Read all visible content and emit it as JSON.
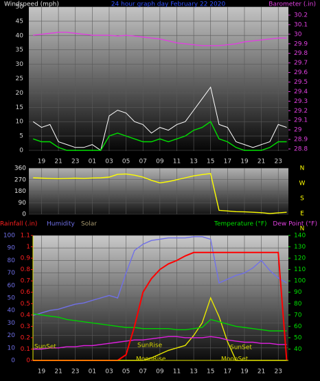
{
  "chart_data": [
    {
      "type": "line",
      "title": "24 hour graph day   February 22 2020",
      "y_label": "Windspeed (mph)",
      "y2_label": "Barometer (.in)",
      "x": [
        0,
        1,
        2,
        3,
        4,
        5,
        6,
        7,
        8,
        9,
        10,
        11,
        12,
        13,
        14,
        15,
        16,
        17,
        18,
        19,
        20,
        21,
        22,
        23,
        24,
        25,
        26,
        27,
        28,
        29,
        30
      ],
      "xlim": [
        -0.5,
        30.2
      ],
      "xticks": [
        {
          "value": 1,
          "label": "19"
        },
        {
          "value": 3,
          "label": "21"
        },
        {
          "value": 5,
          "label": "23"
        },
        {
          "value": 7,
          "label": "01"
        },
        {
          "value": 9,
          "label": "03"
        },
        {
          "value": 11,
          "label": "05"
        },
        {
          "value": 13,
          "label": "07"
        },
        {
          "value": 15,
          "label": "09"
        },
        {
          "value": 17,
          "label": "11"
        },
        {
          "value": 19,
          "label": "13"
        },
        {
          "value": 21,
          "label": "15"
        },
        {
          "value": 23,
          "label": "17"
        },
        {
          "value": 25,
          "label": "19"
        },
        {
          "value": 27,
          "label": "21"
        },
        {
          "value": 29,
          "label": "23"
        }
      ],
      "ylim": [
        0,
        50
      ],
      "yticks": [
        0,
        5,
        10,
        15,
        20,
        25,
        30,
        35,
        40,
        45,
        50
      ],
      "y2lim": [
        28.8,
        30.2
      ],
      "y2ticks": [
        28.8,
        28.9,
        29,
        29.1,
        29.2,
        29.3,
        29.4,
        29.5,
        29.6,
        29.7,
        29.8,
        29.9,
        30,
        30.1,
        30.2
      ],
      "series": [
        {
          "color": "#ffffff",
          "values": [
            10,
            8,
            9,
            3,
            2,
            1,
            1,
            2,
            0,
            12,
            14,
            13,
            10,
            9,
            6,
            8,
            7,
            9,
            10,
            14,
            18,
            22,
            9,
            8,
            3,
            2,
            1,
            2,
            3,
            9,
            8
          ]
        },
        {
          "color": "#00e000",
          "values": [
            4,
            3,
            3,
            1,
            0,
            0,
            0,
            0,
            0,
            5,
            6,
            5,
            4,
            3,
            3,
            4,
            3,
            4,
            5,
            7,
            8,
            10,
            4,
            3,
            1,
            0,
            0,
            0,
            1,
            3,
            3
          ]
        },
        {
          "color": "#e040e0",
          "axis": "y2",
          "values": [
            29.99,
            30.0,
            30.01,
            30.02,
            30.02,
            30.01,
            30.0,
            29.99,
            29.99,
            29.99,
            29.98,
            29.99,
            29.98,
            29.97,
            29.96,
            29.95,
            29.93,
            29.91,
            29.9,
            29.89,
            29.88,
            29.88,
            29.88,
            29.89,
            29.9,
            29.92,
            29.93,
            29.94,
            29.95,
            29.96,
            29.96
          ]
        }
      ]
    },
    {
      "type": "line",
      "x": [
        0,
        1,
        2,
        3,
        4,
        5,
        6,
        7,
        8,
        9,
        10,
        11,
        12,
        13,
        14,
        15,
        16,
        17,
        18,
        19,
        20,
        21,
        22,
        23,
        24,
        25,
        26,
        27,
        28,
        29,
        30
      ],
      "xlim": [
        -0.5,
        30.2
      ],
      "ylim": [
        0,
        360
      ],
      "yticks": [
        0,
        90,
        180,
        270,
        360
      ],
      "compass": [
        "N",
        "E",
        "S",
        "W",
        "N"
      ],
      "series": [
        {
          "color": "#ffff00",
          "values": [
            285,
            282,
            280,
            278,
            280,
            282,
            280,
            283,
            285,
            290,
            312,
            315,
            305,
            290,
            265,
            245,
            255,
            270,
            285,
            300,
            310,
            318,
            30,
            25,
            20,
            18,
            15,
            12,
            5,
            10,
            15
          ]
        }
      ]
    },
    {
      "type": "line",
      "y_label": "Rainfall (.in)",
      "humidity_label": "Humidity",
      "solar_label": "Solar",
      "y2_label": "Temperature (°F)",
      "dew_label": "Dew Point (°F)",
      "x": [
        0,
        1,
        2,
        3,
        4,
        5,
        6,
        7,
        8,
        9,
        10,
        11,
        12,
        13,
        14,
        15,
        16,
        17,
        18,
        19,
        20,
        21,
        22,
        23,
        24,
        25,
        26,
        27,
        28,
        29,
        30
      ],
      "xlim": [
        -0.5,
        30.2
      ],
      "xticks": [
        {
          "value": 1,
          "label": "19"
        },
        {
          "value": 3,
          "label": "21"
        },
        {
          "value": 5,
          "label": "23"
        },
        {
          "value": 7,
          "label": "01"
        },
        {
          "value": 9,
          "label": "03"
        },
        {
          "value": 11,
          "label": "05"
        },
        {
          "value": 13,
          "label": "07"
        },
        {
          "value": 15,
          "label": "09"
        },
        {
          "value": 17,
          "label": "11"
        },
        {
          "value": 19,
          "label": "13"
        },
        {
          "value": 21,
          "label": "15"
        },
        {
          "value": 23,
          "label": "17"
        },
        {
          "value": 25,
          "label": "19"
        },
        {
          "value": 27,
          "label": "21"
        },
        {
          "value": 29,
          "label": "23"
        }
      ],
      "ylim": [
        0,
        1.1
      ],
      "yticks": [
        0,
        0.1,
        0.2,
        0.3,
        0.4,
        0.5,
        0.6,
        0.7,
        0.8,
        0.9,
        1,
        1.1
      ],
      "hlim": [
        0,
        100
      ],
      "hticks": [
        0,
        10,
        20,
        30,
        40,
        50,
        60,
        70,
        80,
        90,
        100
      ],
      "y2lim": [
        30,
        140
      ],
      "y2ticks": [
        40,
        50,
        60,
        70,
        80,
        90,
        100,
        110,
        120,
        130,
        140
      ],
      "annotations": [
        "SunSet",
        "SunRise",
        "SunSet",
        "MoonRise",
        "MoonSet"
      ],
      "series": [
        {
          "color": "#7070e8",
          "axis": "h",
          "values": [
            36,
            38,
            40,
            41,
            43,
            45,
            46,
            48,
            50,
            52,
            50,
            70,
            88,
            93,
            96,
            97,
            98,
            98,
            98,
            99,
            99,
            97,
            62,
            65,
            68,
            70,
            74,
            80,
            72,
            66,
            62
          ]
        },
        {
          "color": "#e8e800",
          "axis": "h",
          "values": [
            0,
            0,
            0,
            0,
            0,
            0,
            0,
            0,
            0,
            0,
            0,
            0,
            0,
            0,
            2,
            5,
            8,
            10,
            12,
            20,
            30,
            50,
            35,
            15,
            0,
            0,
            0,
            0,
            0,
            0,
            0
          ]
        },
        {
          "color": "#00d000",
          "axis": "y2",
          "values": [
            71,
            70,
            69,
            68,
            66,
            65,
            64,
            63,
            62,
            61,
            60,
            59,
            59,
            58,
            58,
            58,
            58,
            57,
            57,
            58,
            59,
            66,
            64,
            62,
            60,
            59,
            58,
            57,
            56,
            56,
            56
          ]
        },
        {
          "color": "#e020e0",
          "axis": "y2",
          "values": [
            40,
            40,
            41,
            41,
            42,
            42,
            43,
            43,
            44,
            45,
            46,
            47,
            48,
            48,
            49,
            50,
            51,
            51,
            50,
            50,
            50,
            51,
            50,
            48,
            47,
            46,
            46,
            45,
            45,
            44,
            44
          ]
        },
        {
          "color": "#ff0000",
          "values": [
            0,
            0,
            0,
            0,
            0,
            0,
            0,
            0,
            0,
            0,
            0,
            0.05,
            0.3,
            0.6,
            0.72,
            0.8,
            0.85,
            0.88,
            0.92,
            0.95,
            0.95,
            0.95,
            0.95,
            0.95,
            0.95,
            0.95,
            0.95,
            0.95,
            0.95,
            0.95,
            0
          ]
        }
      ]
    }
  ]
}
